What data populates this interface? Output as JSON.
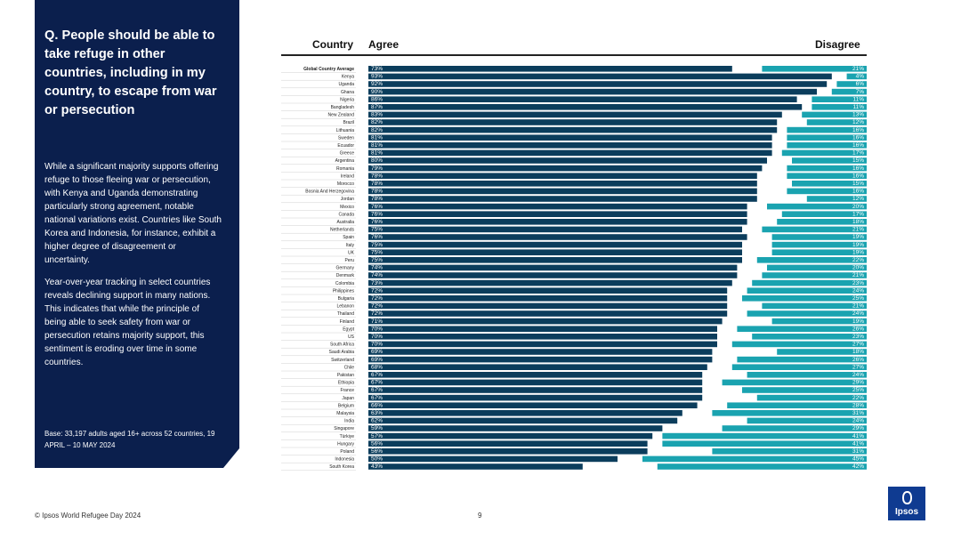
{
  "panel": {
    "question": "Q. People should be able to take refuge in other countries, including in my country, to escape from war or persecution",
    "paragraph1": "While a significant majority supports offering refuge to those fleeing war or persecution, with Kenya and Uganda demonstrating particularly strong agreement, notable national variations exist. Countries like South Korea and Indonesia, for instance, exhibit a higher degree of disagreement or uncertainty.",
    "paragraph2": "Year-over-year tracking in select countries reveals declining support in many nations. This indicates that while the principle of being able to seek safety from war or persecution retains majority support, this sentiment is eroding over time in some countries.",
    "base": "Base: 33,197 adults aged 16+ across 52 countries, 19 APRIL – 10 MAY 2024"
  },
  "headers": {
    "country": "Country",
    "agree": "Agree",
    "disagree": "Disagree"
  },
  "footer": {
    "left": "© Ipsos World Refugee Day 2024",
    "page": "9",
    "logo": "Ipsos"
  },
  "colors": {
    "agree": "#0b3d5c",
    "disagree": "#1aa3b0",
    "panel": "#0b1f4d"
  },
  "chart_data": {
    "type": "bar",
    "orientation": "horizontal-stacked",
    "categories": [
      "Global Country Average",
      "Kenya",
      "Uganda",
      "Ghana",
      "Nigeria",
      "Bangladesh",
      "New Zealand",
      "Brazil",
      "Lithuania",
      "Sweden",
      "Ecuador",
      "Greece",
      "Argentina",
      "Romania",
      "Ireland",
      "Morocco",
      "Bosnia And Herzegovina",
      "Jordan",
      "Mexico",
      "Canada",
      "Australia",
      "Netherlands",
      "Spain",
      "Italy",
      "UK",
      "Peru",
      "Germany",
      "Denmark",
      "Colombia",
      "Philippines",
      "Bulgaria",
      "Lebanon",
      "Thailand",
      "Finland",
      "Egypt",
      "US",
      "South Africa",
      "Saudi Arabia",
      "Switzerland",
      "Chile",
      "Pakistan",
      "Ethiopia",
      "France",
      "Japan",
      "Belgium",
      "Malaysia",
      "India",
      "Singapore",
      "Türkiye",
      "Hungary",
      "Poland",
      "Indonesia",
      "South Korea"
    ],
    "series": [
      {
        "name": "Agree",
        "values": [
          73,
          93,
          92,
          90,
          86,
          87,
          83,
          82,
          82,
          81,
          81,
          81,
          80,
          79,
          78,
          78,
          78,
          78,
          76,
          76,
          76,
          75,
          76,
          75,
          75,
          75,
          74,
          74,
          73,
          72,
          72,
          72,
          72,
          71,
          70,
          70,
          70,
          69,
          69,
          68,
          67,
          67,
          67,
          67,
          66,
          63,
          62,
          59,
          57,
          56,
          56,
          50,
          43
        ]
      },
      {
        "name": "Disagree",
        "values": [
          21,
          4,
          6,
          7,
          11,
          11,
          13,
          12,
          16,
          16,
          16,
          17,
          15,
          16,
          16,
          15,
          16,
          12,
          20,
          17,
          18,
          21,
          19,
          19,
          19,
          22,
          20,
          21,
          23,
          24,
          25,
          21,
          24,
          19,
          26,
          23,
          27,
          18,
          26,
          27,
          24,
          29,
          25,
          22,
          28,
          31,
          24,
          29,
          41,
          41,
          31,
          45,
          42
        ]
      }
    ],
    "xlim": [
      0,
      100
    ]
  }
}
